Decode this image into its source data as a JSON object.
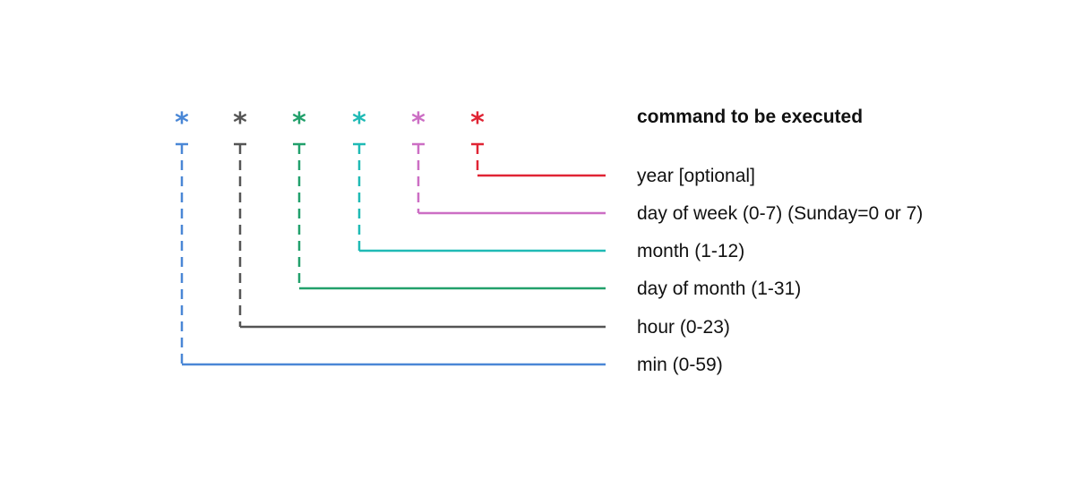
{
  "header": {
    "command_label": "command to be executed"
  },
  "fields": [
    {
      "symbol": "*",
      "label": "min (0-59)",
      "color": "#4a87d6"
    },
    {
      "symbol": "*",
      "label": "hour (0-23)",
      "color": "#555555"
    },
    {
      "symbol": "*",
      "label": "day of month (1-31)",
      "color": "#22a06b"
    },
    {
      "symbol": "*",
      "label": "month (1-12)",
      "color": "#1fbab5"
    },
    {
      "symbol": "*",
      "label": "day of week (0-7) (Sunday=0 or 7)",
      "color": "#cc6ec4"
    },
    {
      "symbol": "*",
      "label": "year [optional]",
      "color": "#e02434"
    }
  ]
}
